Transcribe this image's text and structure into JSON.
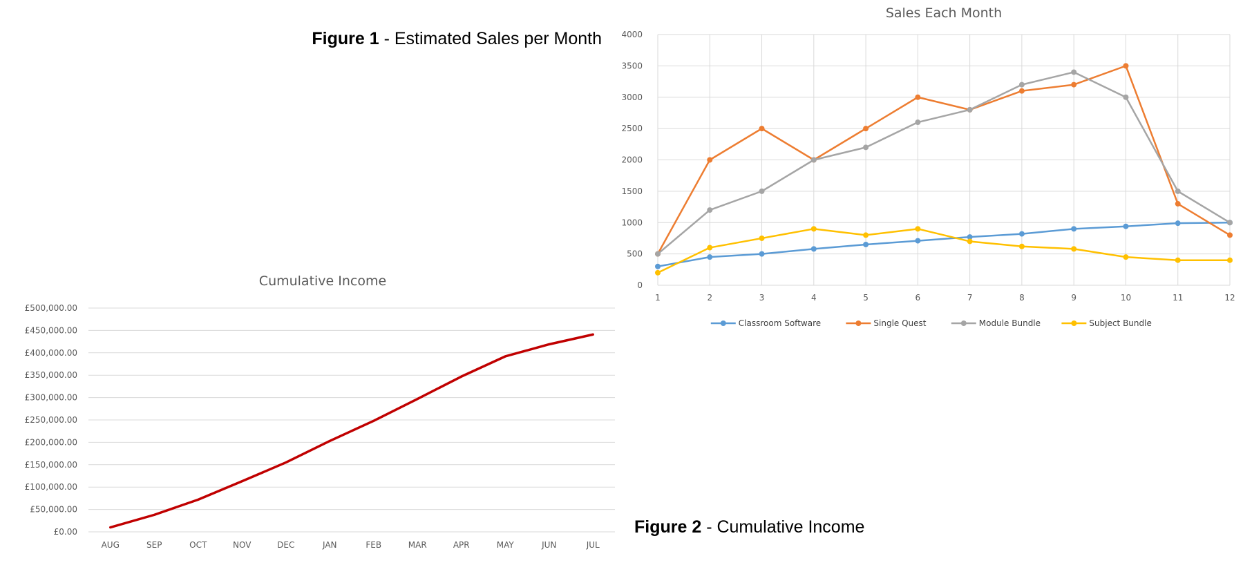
{
  "captions": {
    "figure1_bold": "Figure 1",
    "figure1_text": " - Estimated Sales per Month",
    "figure2_bold": "Figure 2",
    "figure2_text": " - Cumulative Income"
  },
  "chart_data": [
    {
      "type": "line",
      "title": "Sales Each Month",
      "x": [
        1,
        2,
        3,
        4,
        5,
        6,
        7,
        8,
        9,
        10,
        11,
        12
      ],
      "x_tick_labels": [
        "1",
        "2",
        "3",
        "4",
        "5",
        "6",
        "7",
        "8",
        "9",
        "10",
        "11",
        "12"
      ],
      "ylim": [
        0,
        4000
      ],
      "y_ticks": [
        0,
        500,
        1000,
        1500,
        2000,
        2500,
        3000,
        3500,
        4000
      ],
      "y_tick_labels": [
        "0",
        "500",
        "1000",
        "1500",
        "2000",
        "2500",
        "3000",
        "3500",
        "4000"
      ],
      "grid": true,
      "legend": "bottom",
      "markers": true,
      "series": [
        {
          "name": "Classroom Software",
          "color": "#5b9bd5",
          "values": [
            300,
            450,
            500,
            580,
            650,
            710,
            770,
            820,
            900,
            940,
            990,
            1000
          ]
        },
        {
          "name": "Single Quest",
          "color": "#ed7d31",
          "values": [
            500,
            2000,
            2500,
            2000,
            2500,
            3000,
            2800,
            3100,
            3200,
            3500,
            1300,
            800
          ]
        },
        {
          "name": "Module Bundle",
          "color": "#a5a5a5",
          "values": [
            500,
            1200,
            1500,
            2000,
            2200,
            2600,
            2800,
            3200,
            3400,
            3000,
            1500,
            1000
          ]
        },
        {
          "name": "Subject Bundle",
          "color": "#ffc000",
          "values": [
            200,
            600,
            750,
            900,
            800,
            900,
            700,
            620,
            580,
            450,
            400,
            400
          ]
        }
      ]
    },
    {
      "type": "line",
      "title": "Cumulative Income",
      "categories": [
        "AUG",
        "SEP",
        "OCT",
        "NOV",
        "DEC",
        "JAN",
        "FEB",
        "MAR",
        "APR",
        "MAY",
        "JUN",
        "JUL"
      ],
      "ylim": [
        0,
        500000
      ],
      "y_ticks": [
        0,
        50000,
        100000,
        150000,
        200000,
        250000,
        300000,
        350000,
        400000,
        450000,
        500000
      ],
      "y_tick_labels": [
        "£0.00",
        "£50,000.00",
        "£100,000.00",
        "£150,000.00",
        "£200,000.00",
        "£250,000.00",
        "£300,000.00",
        "£350,000.00",
        "£400,000.00",
        "£450,000.00",
        "£500,000.00"
      ],
      "grid": true,
      "markers": false,
      "series": [
        {
          "color": "#c00000",
          "values": [
            10000,
            38000,
            72000,
            113000,
            155000,
            203000,
            248000,
            297000,
            347000,
            392000,
            419000,
            441000
          ]
        }
      ]
    }
  ]
}
